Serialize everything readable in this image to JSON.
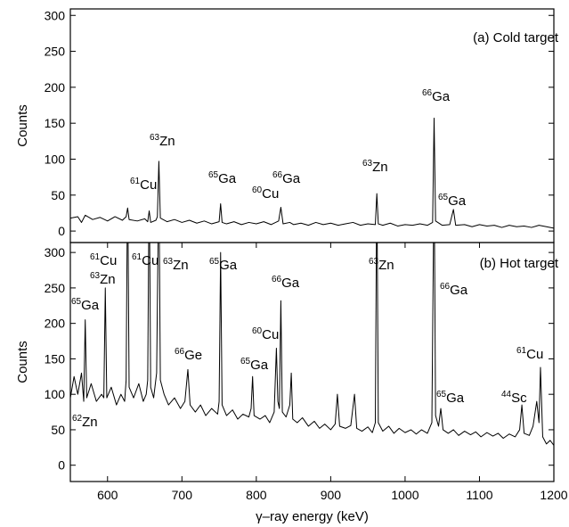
{
  "chart_data": [
    {
      "type": "line",
      "panel_label": "(a) Cold target",
      "ylabel": "Counts",
      "xlim": [
        550,
        1200
      ],
      "ylim": [
        -16,
        309
      ],
      "yticks": [
        0,
        50,
        100,
        150,
        200,
        250,
        300
      ],
      "x": [
        550,
        560,
        565,
        570,
        580,
        590,
        600,
        610,
        620,
        625,
        627,
        629,
        640,
        650,
        654,
        656,
        658,
        665,
        667,
        669,
        671,
        680,
        690,
        700,
        710,
        720,
        730,
        740,
        750,
        752,
        754,
        760,
        770,
        780,
        790,
        800,
        810,
        820,
        830,
        833,
        836,
        845,
        850,
        860,
        870,
        880,
        890,
        900,
        910,
        920,
        930,
        940,
        950,
        960,
        962,
        964,
        970,
        980,
        990,
        1000,
        1010,
        1020,
        1030,
        1037,
        1039,
        1041,
        1050,
        1060,
        1065,
        1068,
        1080,
        1090,
        1100,
        1110,
        1120,
        1130,
        1140,
        1150,
        1160,
        1170,
        1180,
        1190,
        1200
      ],
      "series": [
        {
          "color": "#000000",
          "values": [
            18,
            20,
            12,
            22,
            16,
            19,
            14,
            20,
            15,
            20,
            32,
            16,
            14,
            17,
            13,
            28,
            12,
            15,
            20,
            97,
            18,
            13,
            16,
            12,
            15,
            11,
            14,
            10,
            13,
            38,
            12,
            10,
            13,
            9,
            12,
            10,
            13,
            9,
            14,
            33,
            10,
            12,
            9,
            11,
            8,
            12,
            9,
            11,
            8,
            10,
            12,
            8,
            10,
            9,
            52,
            10,
            8,
            11,
            7,
            9,
            8,
            10,
            8,
            12,
            157,
            14,
            8,
            9,
            30,
            8,
            9,
            6,
            9,
            7,
            8,
            5,
            8,
            6,
            7,
            5,
            8,
            6,
            4
          ]
        }
      ],
      "annotations": [
        {
          "mass": "61",
          "symbol": "Cu"
        },
        {
          "mass": "63",
          "symbol": "Zn"
        },
        {
          "mass": "65",
          "symbol": "Ga"
        },
        {
          "mass": "60",
          "symbol": "Cu"
        },
        {
          "mass": "66",
          "symbol": "Ga"
        },
        {
          "mass": "63",
          "symbol": "Zn"
        },
        {
          "mass": "66",
          "symbol": "Ga"
        },
        {
          "mass": "65",
          "symbol": "Ga"
        }
      ]
    },
    {
      "type": "line",
      "panel_label": "(b) Hot target",
      "ylabel": "Counts",
      "xlabel": "γ–ray energy (keV)",
      "xlim": [
        550,
        1200
      ],
      "xticks": [
        600,
        700,
        800,
        900,
        1000,
        1100,
        1200
      ],
      "ylim": [
        -23,
        314
      ],
      "yticks": [
        0,
        50,
        100,
        150,
        200,
        250,
        300
      ],
      "x": [
        550,
        555,
        560,
        565,
        568,
        570,
        572,
        578,
        585,
        592,
        595,
        597,
        599,
        605,
        612,
        618,
        623,
        625,
        627,
        629,
        635,
        642,
        648,
        652,
        654,
        656,
        658,
        662,
        666,
        669,
        671,
        676,
        682,
        690,
        698,
        704,
        708,
        711,
        718,
        725,
        732,
        740,
        748,
        750,
        752,
        754,
        760,
        768,
        775,
        782,
        790,
        793,
        795,
        797,
        805,
        812,
        818,
        824,
        827,
        829,
        831,
        833,
        835,
        840,
        845,
        847,
        849,
        855,
        862,
        870,
        878,
        885,
        892,
        900,
        906,
        909,
        912,
        920,
        927,
        932,
        935,
        942,
        950,
        956,
        960,
        962,
        964,
        970,
        978,
        985,
        992,
        1000,
        1008,
        1015,
        1022,
        1030,
        1036,
        1039,
        1041,
        1045,
        1048,
        1051,
        1058,
        1065,
        1072,
        1080,
        1088,
        1095,
        1102,
        1110,
        1118,
        1125,
        1132,
        1140,
        1148,
        1154,
        1157,
        1160,
        1167,
        1172,
        1177,
        1180,
        1182,
        1185,
        1190,
        1195,
        1200
      ],
      "series": [
        {
          "color": "#000000",
          "values": [
            95,
            125,
            100,
            130,
            90,
            205,
            95,
            115,
            90,
            100,
            95,
            250,
            95,
            110,
            85,
            100,
            90,
            120,
            420,
            110,
            95,
            115,
            90,
            100,
            120,
            420,
            110,
            95,
            130,
            420,
            120,
            100,
            85,
            95,
            80,
            90,
            135,
            85,
            75,
            85,
            70,
            80,
            72,
            90,
            300,
            85,
            70,
            78,
            65,
            72,
            68,
            80,
            125,
            70,
            65,
            70,
            60,
            75,
            165,
            90,
            80,
            232,
            75,
            68,
            85,
            130,
            65,
            60,
            67,
            55,
            62,
            52,
            58,
            50,
            58,
            100,
            55,
            52,
            56,
            100,
            52,
            48,
            54,
            46,
            60,
            420,
            60,
            48,
            55,
            45,
            52,
            46,
            50,
            44,
            50,
            45,
            60,
            420,
            70,
            55,
            80,
            50,
            45,
            50,
            42,
            48,
            43,
            47,
            40,
            46,
            41,
            45,
            38,
            44,
            40,
            50,
            85,
            45,
            42,
            55,
            90,
            60,
            138,
            40,
            30,
            35,
            28
          ]
        }
      ],
      "annotations": [
        {
          "mass": "61",
          "symbol": "Cu"
        },
        {
          "mass": "63",
          "symbol": "Zn"
        },
        {
          "mass": "61",
          "symbol": "Cu"
        },
        {
          "mass": "63",
          "symbol": "Zn"
        },
        {
          "mass": "65",
          "symbol": "Ga"
        },
        {
          "mass": "65",
          "symbol": "Ga"
        },
        {
          "mass": "66",
          "symbol": "Ga"
        },
        {
          "mass": "63",
          "symbol": "Zn"
        },
        {
          "mass": "66",
          "symbol": "Ga"
        },
        {
          "mass": "66",
          "symbol": "Ge"
        },
        {
          "mass": "60",
          "symbol": "Cu"
        },
        {
          "mass": "65",
          "symbol": "Ga"
        },
        {
          "mass": "62",
          "symbol": "Zn"
        },
        {
          "mass": "65",
          "symbol": "Ga"
        },
        {
          "mass": "44",
          "symbol": "Sc"
        },
        {
          "mass": "61",
          "symbol": "Cu"
        }
      ]
    }
  ]
}
